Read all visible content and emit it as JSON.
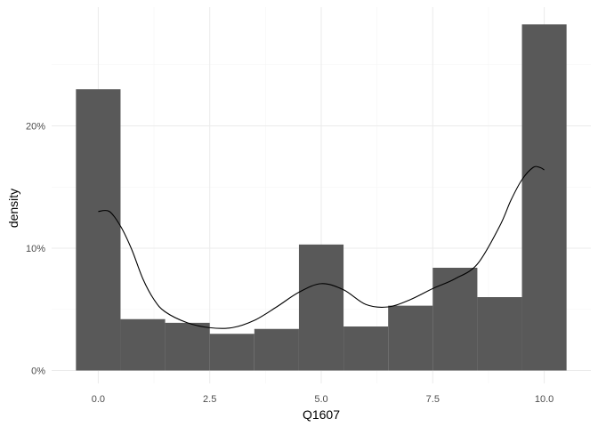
{
  "chart_data": {
    "type": "bar",
    "subtype": "histogram-with-density-curve",
    "xlabel": "Q1607",
    "ylabel": "density",
    "xlim": [
      -0.5,
      10.5
    ],
    "ylim": [
      0,
      0.285
    ],
    "x_ticks": [
      0,
      2.5,
      5,
      7.5,
      10
    ],
    "x_tick_labels": [
      "0.0",
      "2.5",
      "5.0",
      "7.5",
      "10.0"
    ],
    "y_ticks": [
      0,
      0.1,
      0.2
    ],
    "y_tick_labels": [
      "0%",
      "10%",
      "20%"
    ],
    "grid": true,
    "legend": "none",
    "bin_width": 1,
    "bins": [
      {
        "center": 0,
        "density": 0.23
      },
      {
        "center": 1,
        "density": 0.042
      },
      {
        "center": 2,
        "density": 0.039
      },
      {
        "center": 3,
        "density": 0.03
      },
      {
        "center": 4,
        "density": 0.034
      },
      {
        "center": 5,
        "density": 0.103
      },
      {
        "center": 6,
        "density": 0.036
      },
      {
        "center": 7,
        "density": 0.053
      },
      {
        "center": 8,
        "density": 0.084
      },
      {
        "center": 9,
        "density": 0.06
      },
      {
        "center": 10,
        "density": 0.283
      }
    ],
    "density_curve": {
      "x": [
        0,
        0.25,
        0.5,
        0.75,
        1,
        1.25,
        1.5,
        2,
        2.5,
        3,
        3.5,
        4,
        4.5,
        5,
        5.5,
        6,
        6.5,
        7,
        7.5,
        8,
        8.5,
        9,
        9.25,
        9.5,
        9.75,
        9.9,
        10
      ],
      "y": [
        0.13,
        0.13,
        0.118,
        0.099,
        0.075,
        0.058,
        0.048,
        0.039,
        0.035,
        0.035,
        0.041,
        0.052,
        0.064,
        0.071,
        0.066,
        0.054,
        0.052,
        0.058,
        0.067,
        0.075,
        0.087,
        0.118,
        0.139,
        0.156,
        0.166,
        0.166,
        0.164
      ]
    },
    "colors": {
      "bar": "#595959",
      "curve": "#000000",
      "grid_major": "#ebebeb",
      "grid_minor": "#f5f5f5",
      "tick_text": "#4d4d4d"
    }
  }
}
